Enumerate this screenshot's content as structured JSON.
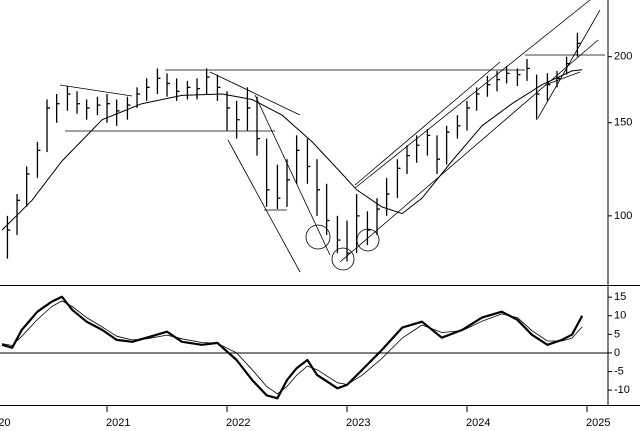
{
  "chart_data": [
    {
      "type": "hlc",
      "log": true,
      "color": "#000000",
      "xlim": [
        2020.108,
        2025.175
      ],
      "ylim": [
        74,
        256
      ],
      "yticks": [
        100,
        150,
        200
      ],
      "x": [
        2020.17,
        2020.25,
        2020.33,
        2020.42,
        2020.5,
        2020.58,
        2020.67,
        2020.75,
        2020.83,
        2020.92,
        2021.0,
        2021.08,
        2021.17,
        2021.25,
        2021.33,
        2021.42,
        2021.5,
        2021.58,
        2021.67,
        2021.75,
        2021.83,
        2021.92,
        2022.0,
        2022.08,
        2022.17,
        2022.25,
        2022.33,
        2022.42,
        2022.5,
        2022.58,
        2022.67,
        2022.75,
        2022.83,
        2022.92,
        2023.0,
        2023.08,
        2023.17,
        2023.25,
        2023.33,
        2023.42,
        2023.5,
        2023.58,
        2023.67,
        2023.75,
        2023.83,
        2023.92,
        2024.0,
        2024.08,
        2024.17,
        2024.25,
        2024.33,
        2024.42,
        2024.5,
        2024.58,
        2024.67,
        2024.75,
        2024.83,
        2024.92
      ],
      "high": [
        100,
        110,
        124,
        138,
        166,
        170,
        176,
        172,
        166,
        168,
        170,
        166,
        168,
        175,
        182,
        190,
        186,
        182,
        180,
        182,
        190,
        185,
        172,
        165,
        175,
        168,
        140,
        125,
        128,
        142,
        140,
        128,
        115,
        100,
        98,
        110,
        102,
        108,
        118,
        128,
        136,
        142,
        146,
        142,
        148,
        155,
        165,
        175,
        184,
        188,
        192,
        190,
        198,
        185,
        186,
        188,
        200,
        222
      ],
      "low": [
        83,
        92,
        104,
        118,
        132,
        150,
        158,
        156,
        152,
        155,
        150,
        148,
        152,
        160,
        165,
        170,
        168,
        165,
        166,
        166,
        170,
        165,
        145,
        140,
        145,
        130,
        104,
        103,
        104,
        115,
        115,
        100,
        92,
        85,
        82,
        85,
        88,
        92,
        100,
        108,
        120,
        126,
        130,
        120,
        125,
        140,
        145,
        158,
        168,
        172,
        178,
        176,
        180,
        152,
        165,
        175,
        185,
        200
      ],
      "close": [
        94,
        107,
        120,
        133,
        160,
        163,
        170,
        163,
        160,
        162,
        163,
        158,
        162,
        170,
        175,
        182,
        178,
        172,
        175,
        174,
        183,
        175,
        160,
        152,
        160,
        140,
        112,
        108,
        117,
        133,
        124,
        112,
        98,
        90,
        85,
        100,
        94,
        103,
        110,
        123,
        130,
        136,
        142,
        128,
        144,
        148,
        160,
        170,
        177,
        181,
        186,
        185,
        190,
        170,
        177,
        182,
        194,
        212
      ],
      "moving_average": {
        "color": "#000000",
        "x": [
          2020.125,
          2020.375,
          2020.625,
          2020.96,
          2021.29,
          2021.625,
          2021.96,
          2022.21,
          2022.46,
          2022.71,
          2022.96,
          2023.08,
          2023.29,
          2023.46,
          2023.625,
          2023.875,
          2024.125,
          2024.375,
          2024.625,
          2024.875,
          2024.96
        ],
        "values": [
          94,
          107,
          127,
          152,
          163,
          169,
          170,
          166,
          155,
          138,
          120,
          112,
          104,
          101,
          108,
          127,
          148,
          163,
          177,
          188,
          189
        ]
      }
    },
    {
      "type": "line",
      "color": "#000000",
      "xlim": [
        2020.108,
        2025.175
      ],
      "ylim": [
        -14,
        18
      ],
      "yticks": [
        15,
        10,
        5,
        0,
        -5,
        -10
      ],
      "xticks": [
        2020,
        2021,
        2022,
        2023,
        2024,
        2025
      ],
      "zero_line": true,
      "series": [
        {
          "width": 2.2,
          "x": [
            2020.125,
            2020.21,
            2020.29,
            2020.42,
            2020.54,
            2020.625,
            2020.71,
            2020.83,
            2020.96,
            2021.08,
            2021.21,
            2021.33,
            2021.5,
            2021.625,
            2021.79,
            2021.92,
            2022.08,
            2022.21,
            2022.33,
            2022.42,
            2022.5,
            2022.58,
            2022.67,
            2022.75,
            2022.92,
            2023.0,
            2023.125,
            2023.29,
            2023.46,
            2023.625,
            2023.79,
            2023.96,
            2024.125,
            2024.29,
            2024.42,
            2024.54,
            2024.67,
            2024.79,
            2024.875,
            2024.96
          ],
          "values": [
            2.2,
            1.4,
            6.2,
            11.1,
            13.8,
            15.1,
            11.6,
            8.4,
            6.2,
            3.5,
            3.0,
            4.1,
            5.7,
            3.0,
            2.2,
            2.7,
            -1.9,
            -7.3,
            -11.4,
            -12.2,
            -7.3,
            -4.1,
            -1.9,
            -5.9,
            -9.5,
            -8.6,
            -4.6,
            0.8,
            6.8,
            8.4,
            4.1,
            6.2,
            9.5,
            11.1,
            8.9,
            4.9,
            2.2,
            3.5,
            4.9,
            10.0
          ]
        },
        {
          "width": 0.8,
          "x": [
            2020.125,
            2020.21,
            2020.29,
            2020.42,
            2020.54,
            2020.625,
            2020.71,
            2020.83,
            2020.96,
            2021.08,
            2021.21,
            2021.33,
            2021.5,
            2021.625,
            2021.79,
            2021.92,
            2022.08,
            2022.21,
            2022.33,
            2022.42,
            2022.5,
            2022.58,
            2022.67,
            2022.75,
            2022.92,
            2023.0,
            2023.125,
            2023.29,
            2023.46,
            2023.625,
            2023.79,
            2023.96,
            2024.125,
            2024.29,
            2024.42,
            2024.54,
            2024.67,
            2024.79,
            2024.875,
            2024.96
          ],
          "values": [
            2.5,
            2,
            4.5,
            9,
            12.5,
            14,
            12.5,
            9.5,
            7,
            4.5,
            3.5,
            3.8,
            4.8,
            3.8,
            2.8,
            2.6,
            0,
            -4.5,
            -9,
            -11,
            -9,
            -6,
            -3.5,
            -4.5,
            -8,
            -8.5,
            -6,
            -1.5,
            4,
            7.5,
            5.5,
            6,
            8.5,
            10.5,
            9.5,
            6,
            3.2,
            3.2,
            4,
            7
          ]
        }
      ]
    }
  ]
}
